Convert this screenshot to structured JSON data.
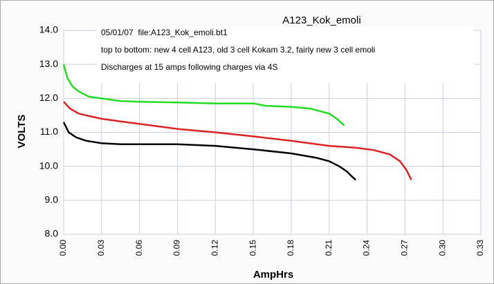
{
  "chart_data": {
    "type": "line",
    "title": "A123_Kok_emoli",
    "annotations": [
      "05/01/07  file:A123_Kok_emoli.bt1",
      "top to bottom: new 4 cell A123, old 3 cell Kokam 3.2, fairly new 3 cell emoli",
      "Discharges at 15 amps following charges via 4S"
    ],
    "xlabel": "AmpHrs",
    "ylabel": "VOLTS",
    "xlim": [
      0,
      0.33
    ],
    "ylim": [
      8,
      14
    ],
    "xticks": [
      {
        "value": 0,
        "label": "0.00"
      },
      0.03,
      0.06,
      0.09,
      0.12,
      0.15,
      0.18,
      0.21,
      0.24,
      0.27,
      {
        "value": 0.3,
        "label": "0.30"
      },
      0.33
    ],
    "yticks": [
      {
        "value": 8,
        "label": "8.0"
      },
      {
        "value": 9,
        "label": "9.0"
      },
      {
        "value": 10,
        "label": "10.0"
      },
      {
        "value": 11,
        "label": "11.0"
      },
      {
        "value": 12,
        "label": "12.0"
      },
      {
        "value": 13,
        "label": "13.0"
      },
      {
        "value": 14,
        "label": "14.0"
      }
    ],
    "grid": true,
    "series": [
      {
        "color": "#22dd22",
        "x": [
          0,
          0.003,
          0.007,
          0.012,
          0.02,
          0.03,
          0.045,
          0.06,
          0.09,
          0.12,
          0.15,
          0.16,
          0.18,
          0.195,
          0.21,
          0.216,
          0.222
        ],
        "values": [
          13.0,
          12.6,
          12.35,
          12.2,
          12.05,
          12.0,
          11.92,
          11.9,
          11.88,
          11.85,
          11.85,
          11.78,
          11.75,
          11.7,
          11.55,
          11.4,
          11.2
        ]
      },
      {
        "color": "#dd2222",
        "x": [
          0,
          0.005,
          0.012,
          0.02,
          0.03,
          0.045,
          0.06,
          0.09,
          0.12,
          0.15,
          0.18,
          0.21,
          0.23,
          0.245,
          0.258,
          0.266,
          0.271,
          0.275
        ],
        "values": [
          11.9,
          11.7,
          11.55,
          11.48,
          11.4,
          11.32,
          11.25,
          11.1,
          11.0,
          10.88,
          10.75,
          10.6,
          10.55,
          10.48,
          10.35,
          10.15,
          9.9,
          9.6
        ]
      },
      {
        "color": "#000000",
        "x": [
          0,
          0.004,
          0.01,
          0.018,
          0.03,
          0.045,
          0.06,
          0.09,
          0.12,
          0.15,
          0.18,
          0.2,
          0.21,
          0.218,
          0.224,
          0.228,
          0.231
        ],
        "values": [
          11.3,
          11.0,
          10.85,
          10.75,
          10.68,
          10.65,
          10.65,
          10.65,
          10.6,
          10.5,
          10.38,
          10.25,
          10.15,
          10.0,
          9.85,
          9.7,
          9.6
        ]
      }
    ]
  }
}
